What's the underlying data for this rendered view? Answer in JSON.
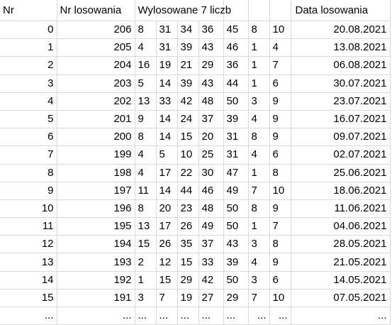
{
  "headers": {
    "nr": "Nr",
    "nr_losowania": "Nr losowania",
    "wylosowane": "Wylosowane 7 liczb",
    "data_losowania": "Data losowania"
  },
  "rows": [
    {
      "nr": "0",
      "draw": "206",
      "nums": [
        "8",
        "31",
        "34",
        "36",
        "45",
        "8",
        "10"
      ],
      "date": "20.08.2021"
    },
    {
      "nr": "1",
      "draw": "205",
      "nums": [
        "4",
        "31",
        "39",
        "43",
        "46",
        "1",
        "4"
      ],
      "date": "13.08.2021"
    },
    {
      "nr": "2",
      "draw": "204",
      "nums": [
        "16",
        "19",
        "21",
        "29",
        "36",
        "1",
        "7"
      ],
      "date": "06.08.2021"
    },
    {
      "nr": "3",
      "draw": "203",
      "nums": [
        "5",
        "14",
        "39",
        "43",
        "44",
        "1",
        "6"
      ],
      "date": "30.07.2021"
    },
    {
      "nr": "4",
      "draw": "202",
      "nums": [
        "13",
        "33",
        "42",
        "48",
        "50",
        "3",
        "9"
      ],
      "date": "23.07.2021"
    },
    {
      "nr": "5",
      "draw": "201",
      "nums": [
        "9",
        "14",
        "24",
        "37",
        "39",
        "4",
        "9"
      ],
      "date": "16.07.2021"
    },
    {
      "nr": "6",
      "draw": "200",
      "nums": [
        "8",
        "14",
        "15",
        "20",
        "31",
        "8",
        "9"
      ],
      "date": "09.07.2021"
    },
    {
      "nr": "7",
      "draw": "199",
      "nums": [
        "4",
        "5",
        "10",
        "25",
        "31",
        "4",
        "6"
      ],
      "date": "02.07.2021"
    },
    {
      "nr": "8",
      "draw": "198",
      "nums": [
        "4",
        "17",
        "22",
        "30",
        "47",
        "1",
        "8"
      ],
      "date": "25.06.2021"
    },
    {
      "nr": "9",
      "draw": "197",
      "nums": [
        "11",
        "14",
        "44",
        "46",
        "49",
        "7",
        "10"
      ],
      "date": "18.06.2021"
    },
    {
      "nr": "10",
      "draw": "196",
      "nums": [
        "8",
        "20",
        "23",
        "48",
        "50",
        "8",
        "9"
      ],
      "date": "11.06.2021"
    },
    {
      "nr": "11",
      "draw": "195",
      "nums": [
        "13",
        "17",
        "26",
        "49",
        "50",
        "1",
        "7"
      ],
      "date": "04.06.2021"
    },
    {
      "nr": "12",
      "draw": "194",
      "nums": [
        "15",
        "26",
        "35",
        "37",
        "43",
        "3",
        "8"
      ],
      "date": "28.05.2021"
    },
    {
      "nr": "13",
      "draw": "193",
      "nums": [
        "2",
        "12",
        "15",
        "33",
        "39",
        "4",
        "9"
      ],
      "date": "21.05.2021"
    },
    {
      "nr": "14",
      "draw": "192",
      "nums": [
        "1",
        "15",
        "29",
        "42",
        "50",
        "3",
        "6"
      ],
      "date": "14.05.2021"
    },
    {
      "nr": "15",
      "draw": "191",
      "nums": [
        "3",
        "7",
        "19",
        "27",
        "29",
        "7",
        "10"
      ],
      "date": "07.05.2021"
    }
  ],
  "ellipsis_row": [
    "...",
    "...",
    "...",
    "...",
    "...",
    "...",
    "...",
    "...",
    "...",
    "..."
  ]
}
